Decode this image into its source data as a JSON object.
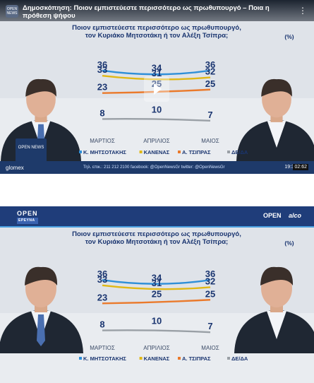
{
  "player": {
    "title": "Δημοσκόπηση: Ποιον εμπιστεύεστε περισσότερο ως πρωθυπουργό – Ποια η πρόθεση ψήφου",
    "logo_text": "OPEN NEWS",
    "more_icon": "more-vertical-icon",
    "brand": "glomex",
    "duration": "02:62",
    "badge": "OPEN NEWS",
    "ticker": "Τηλ. επικ.: 211 212 2100 facebook: @OpenNewsGr twitter: @OpenNewsGr",
    "ticker_time": "19:3"
  },
  "still": {
    "header_left": "OPEN",
    "header_left_sub": "ΕΡΕΥΝΑ",
    "header_right_open": "OPEN",
    "header_right_brand": "alco"
  },
  "chart_data": {
    "type": "line",
    "title_line1": "Ποιον εμπιστεύεστε περισσότερο ως πρωθυπουργό,",
    "title_line2": "τον Κυριάκο Μητσοτάκη ή τον Αλέξη Τσίπρα;",
    "unit": "(%)",
    "categories": [
      "ΜΑΡΤΙΟΣ",
      "ΑΠΡΙΛΙΟΣ",
      "ΜΑΙΟΣ"
    ],
    "ylim": [
      0,
      40
    ],
    "grid": false,
    "legend_position": "bottom",
    "series": [
      {
        "name": "Κ. ΜΗΤΣΟΤΑΚΗΣ",
        "values": [
          36,
          34,
          36
        ],
        "color": "#2f8fd8"
      },
      {
        "name": "ΚΑΝΕΝΑΣ",
        "values": [
          33,
          31,
          32
        ],
        "color": "#e0b816"
      },
      {
        "name": "Α. ΤΣΙΠΡΑΣ",
        "values": [
          23,
          25,
          25
        ],
        "color": "#ea7a2c"
      },
      {
        "name": "ΔΕ/ΔΑ",
        "values": [
          8,
          10,
          7
        ],
        "color": "#9aa0a6"
      }
    ]
  }
}
